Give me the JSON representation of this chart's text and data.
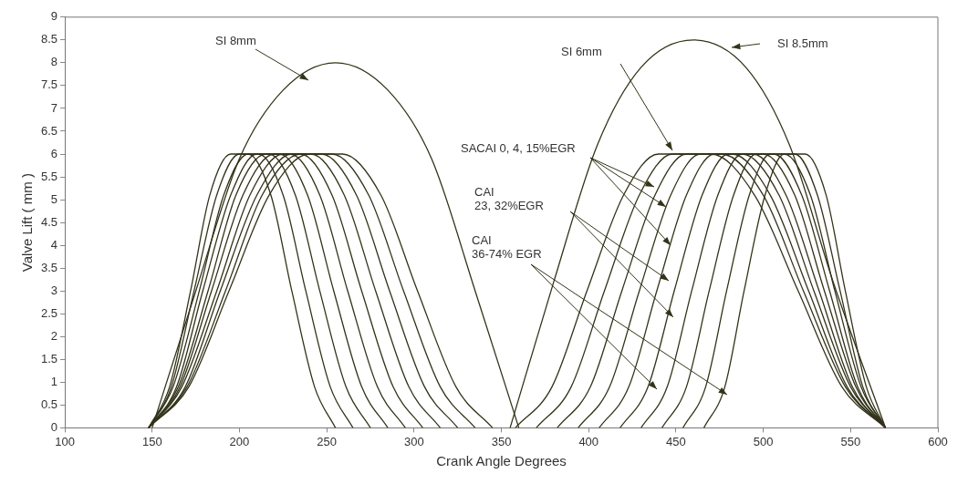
{
  "chart_data": {
    "type": "line",
    "xlabel": "Crank Angle Degrees",
    "ylabel": "Valve Lift ( mm )",
    "xlim": [
      100,
      600
    ],
    "xticks": [
      100,
      150,
      200,
      250,
      300,
      350,
      400,
      450,
      500,
      550,
      600
    ],
    "ylim": [
      0,
      9
    ],
    "yticks": [
      0,
      0.5,
      1,
      1.5,
      2,
      2.5,
      3,
      3.5,
      4,
      4.5,
      5,
      5.5,
      6,
      6.5,
      7,
      7.5,
      8,
      8.5,
      9
    ],
    "grid": false,
    "legend": false,
    "marker": "none",
    "line_style": "solid",
    "series": [
      {
        "color": "#33331a",
        "x": [
          150,
          175,
          200,
          225,
          255,
          285,
          310,
          335,
          360
        ],
        "values": [
          0,
          3.0,
          5.9,
          7.4,
          8.0,
          7.4,
          5.9,
          3.0,
          0
        ]
      },
      {
        "color": "#33331a",
        "x": [
          355,
          380,
          405,
          430,
          460,
          490,
          515,
          540,
          570
        ],
        "values": [
          0,
          3.2,
          6.2,
          7.9,
          8.5,
          7.9,
          6.2,
          3.2,
          0
        ]
      },
      {
        "color": "#33331a",
        "x": [
          148,
          160,
          172,
          183,
          195,
          205,
          218,
          230,
          243,
          255
        ],
        "values": [
          0,
          0.9,
          3,
          5.1,
          6,
          6,
          5.1,
          3,
          0.9,
          0
        ]
      },
      {
        "color": "#33331a",
        "x": [
          148,
          161,
          174,
          187,
          200,
          211,
          225,
          238,
          252,
          265
        ],
        "values": [
          0,
          0.9,
          3,
          5.1,
          6,
          6,
          5.1,
          3,
          0.9,
          0
        ]
      },
      {
        "color": "#33331a",
        "x": [
          148,
          162,
          177,
          191,
          205,
          217,
          232,
          246,
          261,
          275
        ],
        "values": [
          0,
          0.9,
          3,
          5.1,
          6,
          6,
          5.1,
          3,
          0.9,
          0
        ]
      },
      {
        "color": "#33331a",
        "x": [
          148,
          164,
          179,
          195,
          210,
          223,
          239,
          254,
          270,
          285
        ],
        "values": [
          0,
          0.9,
          3,
          5.1,
          6,
          6,
          5.1,
          3,
          0.9,
          0
        ]
      },
      {
        "color": "#33331a",
        "x": [
          148,
          165,
          182,
          198,
          215,
          229,
          246,
          262,
          279,
          295
        ],
        "values": [
          0,
          0.9,
          3,
          5.1,
          6,
          6,
          5.1,
          3,
          0.9,
          0
        ]
      },
      {
        "color": "#33331a",
        "x": [
          148,
          166,
          184,
          202,
          220,
          235,
          253,
          270,
          288,
          305
        ],
        "values": [
          0,
          0.9,
          3,
          5.1,
          6,
          6,
          5.1,
          3,
          0.9,
          0
        ]
      },
      {
        "color": "#33331a",
        "x": [
          148,
          167,
          187,
          206,
          225,
          241,
          260,
          278,
          297,
          315
        ],
        "values": [
          0,
          0.9,
          3,
          5.1,
          6,
          6,
          5.1,
          3,
          0.9,
          0
        ]
      },
      {
        "color": "#33331a",
        "x": [
          148,
          169,
          189,
          210,
          230,
          247,
          267,
          286,
          306,
          325
        ],
        "values": [
          0,
          0.9,
          3,
          5.1,
          6,
          6,
          5.1,
          3,
          0.9,
          0
        ]
      },
      {
        "color": "#33331a",
        "x": [
          148,
          170,
          192,
          213,
          235,
          253,
          274,
          294,
          315,
          335
        ],
        "values": [
          0,
          0.9,
          3,
          5.1,
          6,
          6,
          5.1,
          3,
          0.9,
          0
        ]
      },
      {
        "color": "#33331a",
        "x": [
          148,
          171,
          194,
          217,
          240,
          259,
          281,
          302,
          324,
          345
        ],
        "values": [
          0,
          0.9,
          3,
          5.1,
          6,
          6,
          5.1,
          3,
          0.9,
          0
        ]
      },
      {
        "color": "#33331a",
        "x": [
          358,
          379,
          399,
          420,
          440,
          470,
          495,
          520,
          545,
          570
        ],
        "values": [
          0,
          0.9,
          3,
          5.1,
          6,
          6,
          5.1,
          3,
          0.9,
          0
        ]
      },
      {
        "color": "#33331a",
        "x": [
          370,
          390,
          409,
          429,
          448,
          476,
          500,
          523,
          547,
          570
        ],
        "values": [
          0,
          0.9,
          3,
          5.1,
          6,
          6,
          5.1,
          3,
          0.9,
          0
        ]
      },
      {
        "color": "#33331a",
        "x": [
          382,
          401,
          419,
          438,
          456,
          482,
          504,
          526,
          548,
          570
        ],
        "values": [
          0,
          0.9,
          3,
          5.1,
          6,
          6,
          5.1,
          3,
          0.9,
          0
        ]
      },
      {
        "color": "#33331a",
        "x": [
          394,
          412,
          429,
          447,
          464,
          488,
          509,
          529,
          550,
          570
        ],
        "values": [
          0,
          0.9,
          3,
          5.1,
          6,
          6,
          5.1,
          3,
          0.9,
          0
        ]
      },
      {
        "color": "#33331a",
        "x": [
          406,
          423,
          439,
          456,
          472,
          494,
          513,
          532,
          551,
          570
        ],
        "values": [
          0,
          0.9,
          3,
          5.1,
          6,
          6,
          5.1,
          3,
          0.9,
          0
        ]
      },
      {
        "color": "#33331a",
        "x": [
          418,
          434,
          449,
          465,
          480,
          500,
          518,
          535,
          553,
          570
        ],
        "values": [
          0,
          0.9,
          3,
          5.1,
          6,
          6,
          5.1,
          3,
          0.9,
          0
        ]
      },
      {
        "color": "#33331a",
        "x": [
          430,
          445,
          459,
          474,
          488,
          506,
          522,
          538,
          554,
          570
        ],
        "values": [
          0,
          0.9,
          3,
          5.1,
          6,
          6,
          5.1,
          3,
          0.9,
          0
        ]
      },
      {
        "color": "#33331a",
        "x": [
          442,
          456,
          469,
          483,
          496,
          512,
          527,
          541,
          556,
          570
        ],
        "values": [
          0,
          0.9,
          3,
          5.1,
          6,
          6,
          5.1,
          3,
          0.9,
          0
        ]
      },
      {
        "color": "#33331a",
        "x": [
          454,
          467,
          479,
          492,
          504,
          518,
          531,
          544,
          557,
          570
        ],
        "values": [
          0,
          0.9,
          3,
          5.1,
          6,
          6,
          5.1,
          3,
          0.9,
          0
        ]
      },
      {
        "color": "#33331a",
        "x": [
          466,
          478,
          489,
          501,
          512,
          524,
          536,
          547,
          559,
          570
        ],
        "values": [
          0,
          0.9,
          3,
          5.1,
          6,
          6,
          5.1,
          3,
          0.9,
          0
        ]
      }
    ],
    "annotations": [
      "SI 8mm",
      "SI 8.5mm",
      "SI 6mm",
      {
        "text": "SACAI 0, 4, 15%EGR",
        "x": 447,
        "y": 4
      },
      "CAI\n23, 32%EGR",
      "CAI\n36-74% EGR"
    ]
  }
}
